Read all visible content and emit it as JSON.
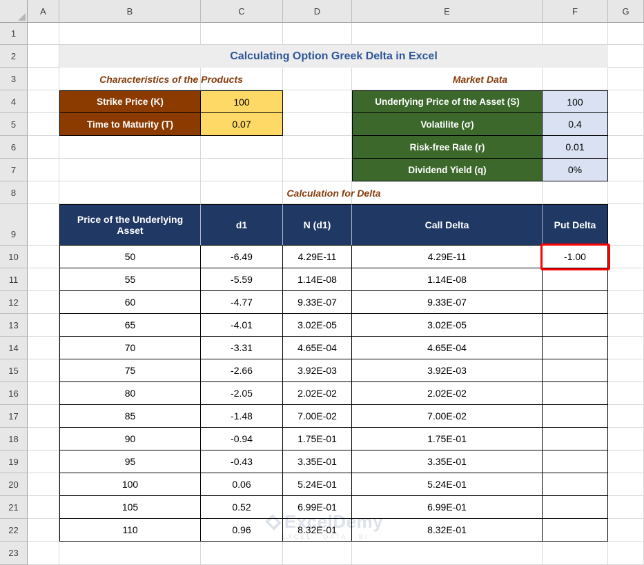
{
  "grid": {
    "columns": [
      "A",
      "B",
      "C",
      "D",
      "E",
      "F",
      "G"
    ],
    "rows": [
      "1",
      "2",
      "3",
      "4",
      "5",
      "6",
      "7",
      "8",
      "9",
      "10",
      "11",
      "12",
      "13",
      "14",
      "15",
      "16",
      "17",
      "18",
      "19",
      "20",
      "21",
      "22",
      "23"
    ],
    "tall_row": "9"
  },
  "title": "Calculating Option Greek Delta in Excel",
  "sections": {
    "characteristics": {
      "heading": "Characteristics of the Products",
      "rows": [
        {
          "label": "Strike Price (K)",
          "value": "100"
        },
        {
          "label": "Time to Maturity (T)",
          "value": "0.07"
        }
      ]
    },
    "market": {
      "heading": "Market Data",
      "rows": [
        {
          "label": "Underlying Price of the Asset (S)",
          "value": "100"
        },
        {
          "label": "Volatilite (σ)",
          "value": "0.4"
        },
        {
          "label": "Risk-free Rate (r)",
          "value": "0.01"
        },
        {
          "label": "Dividend Yield (q)",
          "value": "0%"
        }
      ]
    },
    "delta": {
      "heading": "Calculation for Delta",
      "headers": [
        "Price of the Underlying Asset",
        "d1",
        "N (d1)",
        "Call Delta",
        "Put Delta"
      ],
      "rows": [
        [
          "50",
          "-6.49",
          "4.29E-11",
          "4.29E-11",
          "-1.00"
        ],
        [
          "55",
          "-5.59",
          "1.14E-08",
          "1.14E-08",
          ""
        ],
        [
          "60",
          "-4.77",
          "9.33E-07",
          "9.33E-07",
          ""
        ],
        [
          "65",
          "-4.01",
          "3.02E-05",
          "3.02E-05",
          ""
        ],
        [
          "70",
          "-3.31",
          "4.65E-04",
          "4.65E-04",
          ""
        ],
        [
          "75",
          "-2.66",
          "3.92E-03",
          "3.92E-03",
          ""
        ],
        [
          "80",
          "-2.05",
          "2.02E-02",
          "2.02E-02",
          ""
        ],
        [
          "85",
          "-1.48",
          "7.00E-02",
          "7.00E-02",
          ""
        ],
        [
          "90",
          "-0.94",
          "1.75E-01",
          "1.75E-01",
          ""
        ],
        [
          "95",
          "-0.43",
          "3.35E-01",
          "3.35E-01",
          ""
        ],
        [
          "100",
          "0.06",
          "5.24E-01",
          "5.24E-01",
          ""
        ],
        [
          "105",
          "0.52",
          "6.99E-01",
          "6.99E-01",
          ""
        ],
        [
          "110",
          "0.96",
          "8.32E-01",
          "8.32E-01",
          ""
        ]
      ],
      "highlight": {
        "row": 0,
        "col": 4
      }
    }
  },
  "watermark": {
    "name": "ExcelDemy",
    "tagline": "EXCEL · DATA · BI"
  },
  "colors": {
    "title_text": "#2F5597",
    "title_bg": "#EDEDED",
    "heading_text": "#843C0C",
    "char_label_bg": "#8C3B00",
    "char_value_bg": "#FFD966",
    "market_label_bg": "#3C692B",
    "market_value_bg": "#D9E1F2",
    "table_header_bg": "#1F3864",
    "highlight": "#FF0000"
  }
}
